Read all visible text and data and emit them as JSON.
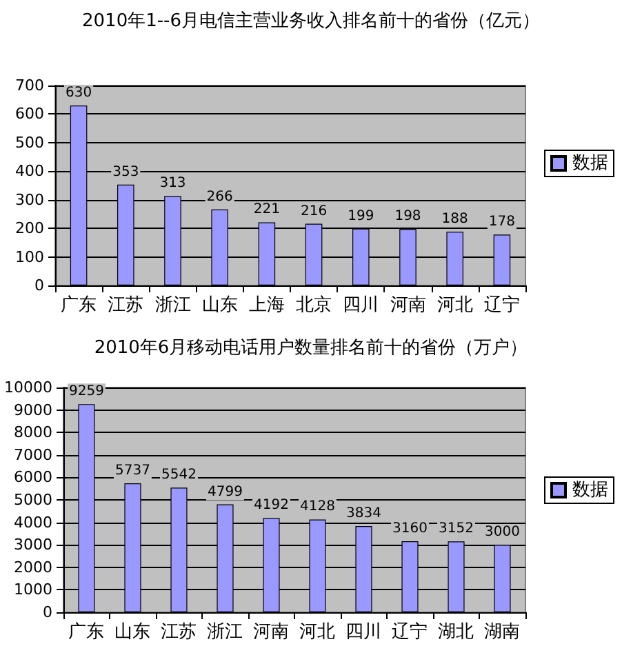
{
  "chart_data": [
    {
      "type": "bar",
      "title": "2010年1--6月电信主营业务收入排名前十的省份（亿元）",
      "categories": [
        "广东",
        "江苏",
        "浙江",
        "山东",
        "上海",
        "北京",
        "四川",
        "河南",
        "河北",
        "辽宁"
      ],
      "series": [
        {
          "name": "数据",
          "color": "#9999ff",
          "values": [
            630,
            353,
            313,
            266,
            221,
            216,
            199,
            198,
            188,
            178
          ]
        }
      ],
      "ylim": [
        0,
        700
      ],
      "yticks": [
        0,
        100,
        200,
        300,
        400,
        500,
        600,
        700
      ],
      "grid": "y",
      "legend": "right",
      "data_labels": true
    },
    {
      "type": "bar",
      "title": "2010年6月移动电话用户数量排名前十的省份（万户）",
      "categories": [
        "广东",
        "山东",
        "江苏",
        "浙江",
        "河南",
        "河北",
        "四川",
        "辽宁",
        "湖北",
        "湖南"
      ],
      "series": [
        {
          "name": "数据",
          "color": "#9999ff",
          "values": [
            9259,
            5737,
            5542,
            4799,
            4192,
            4128,
            3834,
            3160,
            3152,
            3000
          ]
        }
      ],
      "ylim": [
        0,
        10000
      ],
      "yticks": [
        0,
        1000,
        2000,
        3000,
        4000,
        5000,
        6000,
        7000,
        8000,
        9000,
        10000
      ],
      "grid": "y",
      "legend": "right",
      "data_labels": true
    }
  ]
}
